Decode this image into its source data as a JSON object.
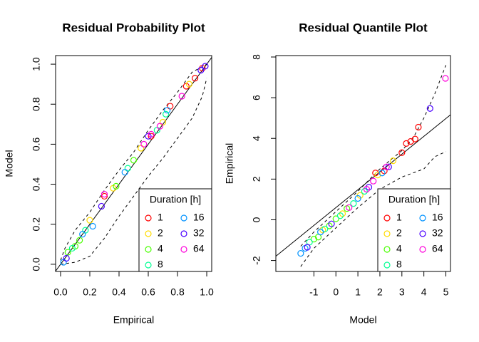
{
  "chart_data": [
    {
      "type": "scatter",
      "title": "Residual Probability Plot",
      "x_label": "Empirical",
      "y_label": "Model",
      "xlim": [
        -0.034,
        1.034
      ],
      "ylim": [
        -0.036,
        1.043
      ],
      "xticks": [
        {
          "value": 0,
          "label": "0.0"
        },
        {
          "value": 0.2,
          "label": "0.2"
        },
        {
          "value": 0.4,
          "label": "0.4"
        },
        {
          "value": 0.6,
          "label": "0.6"
        },
        {
          "value": 0.8,
          "label": "0.8"
        },
        {
          "value": 1,
          "label": "1.0"
        }
      ],
      "yticks": [
        {
          "value": 0,
          "label": "0.0"
        },
        {
          "value": 0.2,
          "label": "0.2"
        },
        {
          "value": 0.4,
          "label": "0.4"
        },
        {
          "value": 0.6,
          "label": "0.6"
        },
        {
          "value": 0.8,
          "label": "0.8"
        },
        {
          "value": 1,
          "label": "1.0"
        }
      ],
      "legend_title": "Duration [h]",
      "legend": "bottomright",
      "series": [
        {
          "name": "1",
          "color": "#FF0000",
          "x": [
            0.3,
            0.62,
            0.75,
            0.86,
            0.92,
            0.97
          ],
          "values": [
            0.34,
            0.64,
            0.79,
            0.89,
            0.93,
            0.98
          ]
        },
        {
          "name": "2",
          "color": "#FFDB00",
          "x": [
            0.2,
            0.36,
            0.55,
            0.7,
            0.88
          ],
          "values": [
            0.22,
            0.38,
            0.58,
            0.71,
            0.9
          ]
        },
        {
          "name": "4",
          "color": "#49FF00",
          "x": [
            0.05,
            0.1,
            0.13,
            0.38,
            0.5
          ],
          "values": [
            0.06,
            0.09,
            0.12,
            0.39,
            0.52
          ]
        },
        {
          "name": "8",
          "color": "#00FF92",
          "x": [
            0.08,
            0.17,
            0.46,
            0.66,
            0.72
          ],
          "values": [
            0.08,
            0.17,
            0.48,
            0.67,
            0.75
          ]
        },
        {
          "name": "16",
          "color": "#0092FF",
          "x": [
            0.02,
            0.15,
            0.22,
            0.44,
            0.73
          ],
          "values": [
            0.01,
            0.15,
            0.19,
            0.46,
            0.77
          ]
        },
        {
          "name": "32",
          "color": "#4900FF",
          "x": [
            0.04,
            0.28,
            0.6,
            0.96,
            0.99
          ],
          "values": [
            0.03,
            0.29,
            0.64,
            0.97,
            0.99
          ]
        },
        {
          "name": "64",
          "color": "#FF00DB",
          "x": [
            0.3,
            0.57,
            0.62,
            0.68,
            0.83
          ],
          "values": [
            0.35,
            0.6,
            0.65,
            0.69,
            0.84
          ]
        }
      ],
      "reference_lines": [
        {
          "x": [
            -0.034,
            1.034
          ],
          "values": [
            -0.034,
            1.034
          ],
          "dash": false
        },
        {
          "x": [
            0,
            0.03,
            0.1,
            0.2,
            0.3,
            0.4,
            0.5,
            0.6,
            0.7,
            0.8,
            0.9,
            1
          ],
          "values": [
            0.02,
            0.08,
            0.17,
            0.26,
            0.37,
            0.47,
            0.56,
            0.67,
            0.77,
            0.86,
            0.96,
            1
          ],
          "dash": true
        },
        {
          "x": [
            0,
            0.1,
            0.2,
            0.3,
            0.4,
            0.5,
            0.6,
            0.7,
            0.8,
            0.9,
            0.97,
            1
          ],
          "values": [
            0,
            0.01,
            0.04,
            0.13,
            0.24,
            0.34,
            0.44,
            0.53,
            0.63,
            0.73,
            0.84,
            0.93
          ],
          "dash": true
        }
      ]
    },
    {
      "type": "scatter",
      "title": "Residual Quantile Plot",
      "x_label": "Model",
      "y_label": "Empirical",
      "xlim": [
        -2.73,
        5.21
      ],
      "ylim": [
        -2.54,
        8.07
      ],
      "xticks": [
        -1,
        0,
        1,
        2,
        3,
        4,
        5
      ],
      "yticks": [
        -2,
        0,
        2,
        4,
        6,
        8
      ],
      "legend_title": "Duration [h]",
      "legend": "bottomright",
      "series": [
        {
          "name": "1",
          "color": "#FF0000",
          "x": [
            1.8,
            2.2,
            3.0,
            3.2,
            3.4,
            3.6,
            3.75
          ],
          "values": [
            2.3,
            2.4,
            3.3,
            3.75,
            3.85,
            3.97,
            4.55
          ]
        },
        {
          "name": "2",
          "color": "#FFDB00",
          "x": [
            -0.6,
            0.3,
            1.1,
            1.9,
            2.6
          ],
          "values": [
            -0.5,
            0.3,
            1.2,
            2.2,
            2.9
          ]
        },
        {
          "name": "4",
          "color": "#49FF00",
          "x": [
            -1.0,
            -0.8,
            -0.3,
            0.0,
            0.5
          ],
          "values": [
            -0.95,
            -0.85,
            -0.3,
            0.05,
            0.55
          ]
        },
        {
          "name": "8",
          "color": "#00FF92",
          "x": [
            -1.2,
            -0.5,
            0.2,
            0.8,
            1.3
          ],
          "values": [
            -1.1,
            -0.45,
            0.2,
            0.8,
            1.4
          ]
        },
        {
          "name": "16",
          "color": "#0092FF",
          "x": [
            -1.6,
            -1.4,
            -0.7,
            1.0,
            2.1
          ],
          "values": [
            -1.65,
            -1.4,
            -0.6,
            1.05,
            2.3
          ]
        },
        {
          "name": "32",
          "color": "#4900FF",
          "x": [
            -1.3,
            -0.2,
            1.5,
            2.4,
            4.28
          ],
          "values": [
            -1.35,
            -0.2,
            1.6,
            2.6,
            5.47
          ]
        },
        {
          "name": "64",
          "color": "#FF00DB",
          "x": [
            0.6,
            1.4,
            1.7,
            2.3,
            4.98
          ],
          "values": [
            0.6,
            1.5,
            1.9,
            2.6,
            6.95
          ]
        }
      ],
      "reference_lines": [
        {
          "x": [
            -2.73,
            5.21
          ],
          "values": [
            -1.79,
            5.16
          ],
          "dash": false
        },
        {
          "x": [
            -1.6,
            -1,
            0,
            1,
            2,
            3,
            3.5,
            4,
            4.5,
            5
          ],
          "values": [
            -1.3,
            -0.6,
            0.4,
            1.4,
            2.5,
            3.4,
            4.0,
            5.0,
            6.2,
            7.6
          ],
          "dash": true
        },
        {
          "x": [
            -1.6,
            -1,
            0,
            1,
            2,
            3,
            4,
            4.5,
            5
          ],
          "values": [
            -2.3,
            -1.4,
            -0.4,
            0.6,
            1.5,
            2.1,
            2.5,
            3.1,
            3.35
          ],
          "dash": true
        }
      ]
    }
  ]
}
